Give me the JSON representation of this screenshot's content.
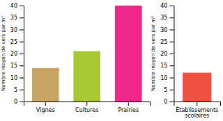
{
  "chart_data": [
    {
      "type": "bar",
      "ylabel": "Nombre moyen de vers par m²",
      "categories": [
        "Vignes",
        "Cultures",
        "Prairies"
      ],
      "values": [
        14,
        21,
        40
      ],
      "colors": [
        "#C8A464",
        "#A8C832",
        "#F0288C"
      ],
      "ylim": [
        0,
        40
      ],
      "yticks": [
        0,
        5,
        10,
        15,
        20,
        25,
        30,
        35,
        40
      ],
      "grid": false
    },
    {
      "type": "bar",
      "ylabel": "Nombre moyen de vers par m²",
      "categories": [
        "Établissements\nscolaires"
      ],
      "values": [
        12
      ],
      "colors": [
        "#F05040"
      ],
      "ylim": [
        0,
        40
      ],
      "yticks": [
        0,
        5,
        10,
        15,
        20,
        25,
        30,
        35,
        40
      ],
      "grid": false
    }
  ]
}
